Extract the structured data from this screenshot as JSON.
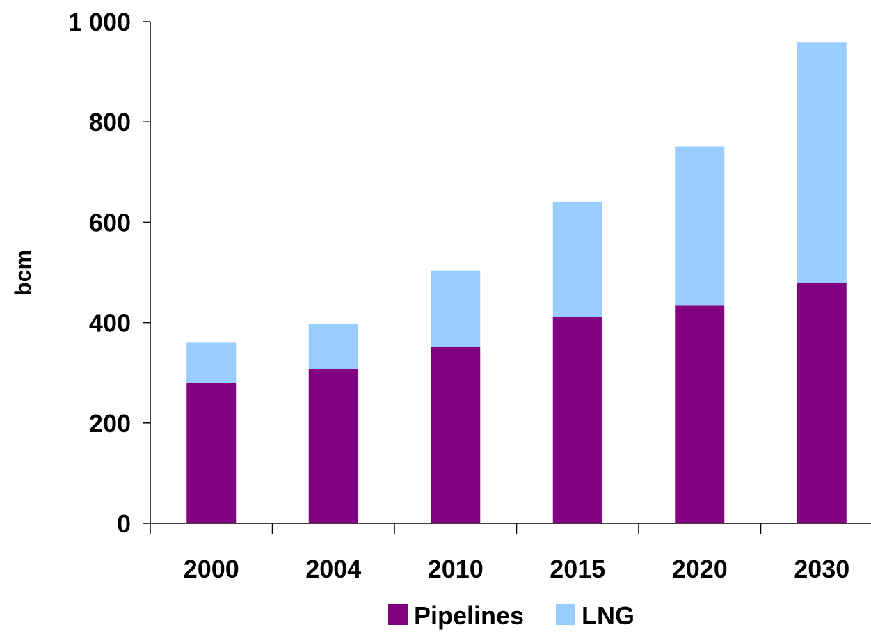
{
  "chart_data": {
    "type": "bar",
    "stacked": true,
    "categories": [
      "2000",
      "2004",
      "2010",
      "2015",
      "2020",
      "2030"
    ],
    "series": [
      {
        "name": "Pipelines",
        "color": "#800080",
        "values": [
          280,
          308,
          351,
          412,
          435,
          480
        ]
      },
      {
        "name": "LNG",
        "color": "#99CCFF",
        "values": [
          80,
          90,
          153,
          229,
          316,
          478
        ]
      }
    ],
    "title": "",
    "xlabel": "",
    "ylabel": "bcm",
    "ylim": [
      0,
      1000
    ],
    "yticks": [
      0,
      200,
      400,
      600,
      800,
      1000
    ],
    "ytick_labels": [
      "0",
      "200",
      "400",
      "600",
      "800",
      "1 000"
    ],
    "grid": false,
    "legend_position": "bottom"
  }
}
